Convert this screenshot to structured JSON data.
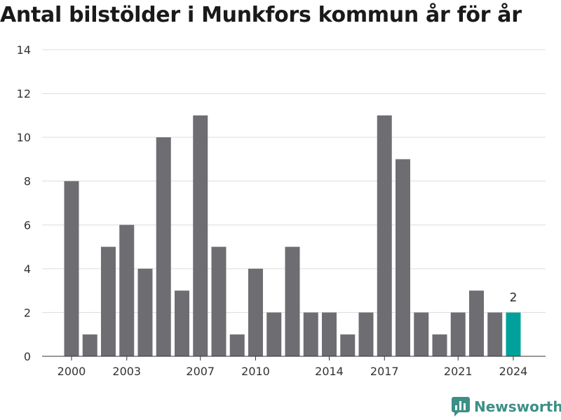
{
  "title": "Antal bilstölder i Munkfors kommun år för år",
  "brand": {
    "name": "Newsworthy",
    "icon": "bar-chart-logo-icon",
    "color": "#3d8f86"
  },
  "chart_data": {
    "type": "bar",
    "title": "Antal bilstölder i Munkfors kommun år för år",
    "xlabel": "",
    "ylabel": "",
    "x": [
      2000,
      2001,
      2002,
      2003,
      2004,
      2005,
      2006,
      2007,
      2008,
      2009,
      2010,
      2011,
      2012,
      2013,
      2014,
      2015,
      2016,
      2017,
      2018,
      2019,
      2020,
      2021,
      2022,
      2023,
      2024
    ],
    "values": [
      8,
      1,
      5,
      6,
      4,
      10,
      3,
      11,
      5,
      1,
      4,
      2,
      5,
      2,
      2,
      1,
      2,
      11,
      9,
      2,
      1,
      2,
      3,
      2,
      2
    ],
    "x_tick_labels": [
      "2000",
      "2003",
      "2007",
      "2010",
      "2014",
      "2017",
      "2021",
      "2024"
    ],
    "y_ticks": [
      0,
      2,
      4,
      6,
      8,
      10,
      12,
      14
    ],
    "ylim": [
      0,
      14
    ],
    "grid": true,
    "bar_color": "#6e6d72",
    "highlight_color": "#00a19a",
    "highlight_x": 2024,
    "data_labels": [
      {
        "x": 2024,
        "text": "2"
      }
    ]
  }
}
